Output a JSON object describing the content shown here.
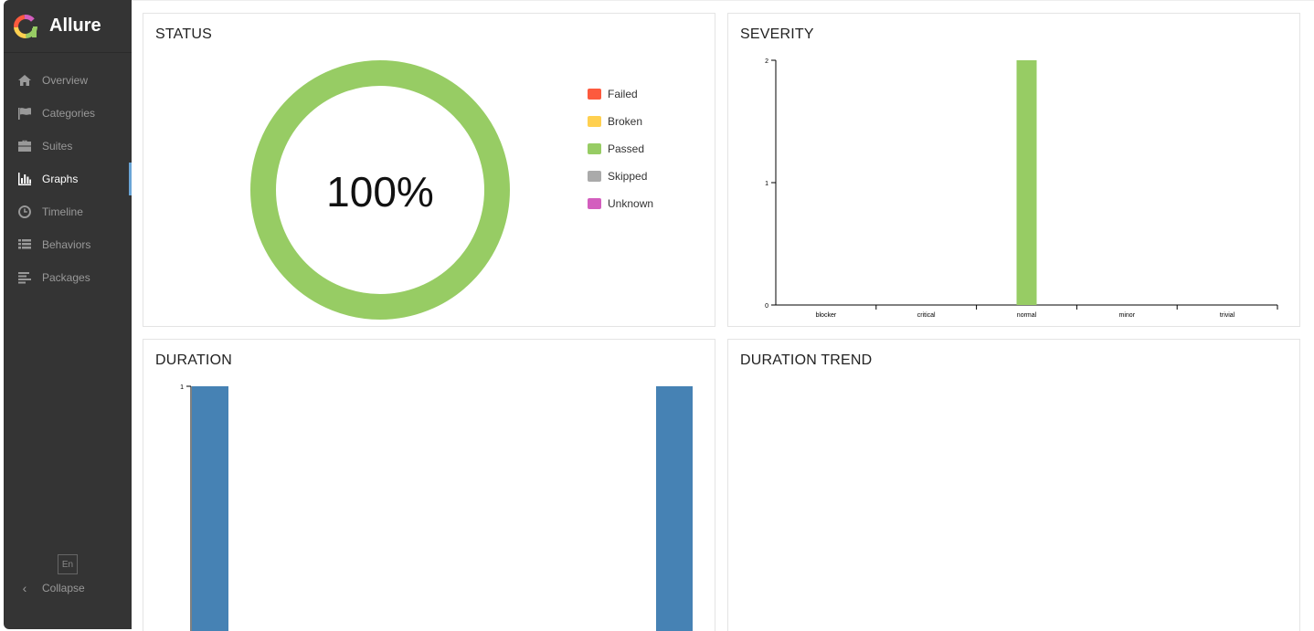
{
  "app": {
    "name": "Allure"
  },
  "sidebar": {
    "items": [
      {
        "label": "Overview",
        "icon": "home-icon"
      },
      {
        "label": "Categories",
        "icon": "flag-icon"
      },
      {
        "label": "Suites",
        "icon": "briefcase-icon"
      },
      {
        "label": "Graphs",
        "icon": "bar-chart-icon",
        "active": true
      },
      {
        "label": "Timeline",
        "icon": "clock-icon"
      },
      {
        "label": "Behaviors",
        "icon": "list-icon"
      },
      {
        "label": "Packages",
        "icon": "align-left-icon"
      }
    ],
    "lang": "En",
    "collapse_label": "Collapse"
  },
  "widgets": {
    "status": {
      "title": "STATUS",
      "center_label": "100%",
      "legend": [
        {
          "label": "Failed",
          "color": "#fd5a3e"
        },
        {
          "label": "Broken",
          "color": "#ffd050"
        },
        {
          "label": "Passed",
          "color": "#97cc64"
        },
        {
          "label": "Skipped",
          "color": "#aaaaaa"
        },
        {
          "label": "Unknown",
          "color": "#d35ebe"
        }
      ]
    },
    "severity": {
      "title": "SEVERITY"
    },
    "duration": {
      "title": "DURATION"
    },
    "trend": {
      "title": "DURATION TREND"
    }
  },
  "chart_data": [
    {
      "type": "pie",
      "categories": [
        "Failed",
        "Broken",
        "Passed",
        "Skipped",
        "Unknown"
      ],
      "values": [
        0,
        0,
        100,
        0,
        0
      ],
      "unit": "%"
    },
    {
      "type": "bar",
      "categories": [
        "blocker",
        "critical",
        "normal",
        "minor",
        "trivial"
      ],
      "values": [
        0,
        0,
        2,
        0,
        0
      ],
      "yticks": [
        "0",
        "1",
        "2"
      ],
      "ylim": [
        0,
        2
      ],
      "color": "#97cc64"
    },
    {
      "type": "bar",
      "yticks": [
        "1"
      ],
      "ylim": [
        0,
        1
      ],
      "values": [
        1,
        1
      ],
      "color": "#4682b4"
    }
  ]
}
